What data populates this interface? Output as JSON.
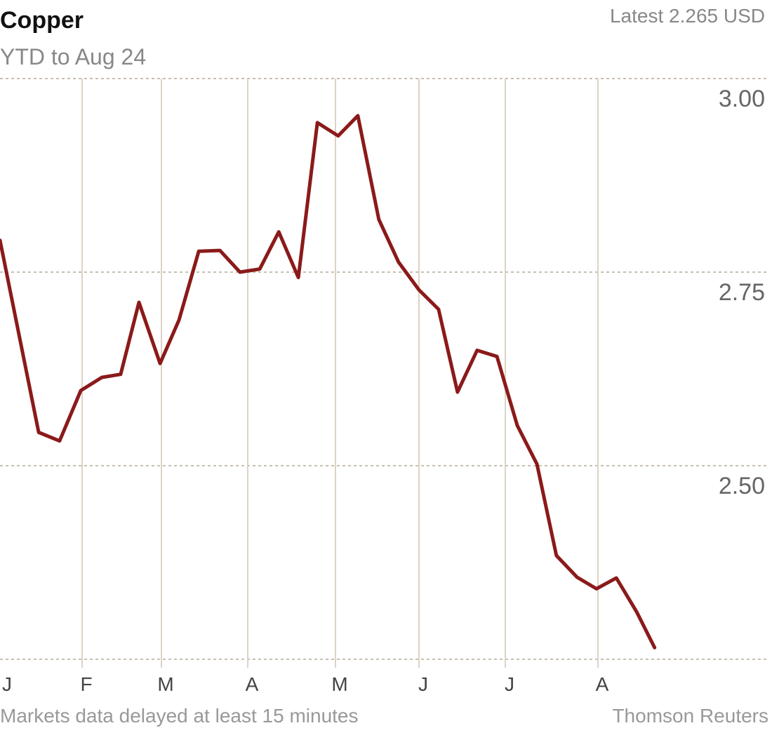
{
  "chart_data": {
    "type": "line",
    "title": "Copper",
    "subtitle": "YTD to Aug 24",
    "latest_label": "Latest 2.265 USD",
    "xlabel": "",
    "ylabel": "",
    "ylim": [
      2.25,
      3.0
    ],
    "yticks": [
      {
        "value": 3.0,
        "label": "3.00"
      },
      {
        "value": 2.75,
        "label": "2.75"
      },
      {
        "value": 2.5,
        "label": "2.50"
      },
      {
        "value": 2.25,
        "label": ""
      }
    ],
    "xticks": [
      {
        "day": 0,
        "label": "J"
      },
      {
        "day": 31,
        "label": "F"
      },
      {
        "day": 60,
        "label": "M"
      },
      {
        "day": 91,
        "label": "A"
      },
      {
        "day": 121,
        "label": "M"
      },
      {
        "day": 152,
        "label": "J"
      },
      {
        "day": 182,
        "label": "J"
      },
      {
        "day": 213,
        "label": "A"
      }
    ],
    "grid": true,
    "series": [
      {
        "name": "Copper",
        "color": "#8b1a1a",
        "x_unit": "day of year",
        "points": [
          [
            0,
            2.791
          ],
          [
            14.6,
            2.543
          ],
          [
            22.5,
            2.532
          ],
          [
            30.5,
            2.597
          ],
          [
            38.2,
            2.614
          ],
          [
            45.1,
            2.618
          ],
          [
            51.8,
            2.711
          ],
          [
            59.5,
            2.632
          ],
          [
            66.3,
            2.688
          ],
          [
            73.4,
            2.777
          ],
          [
            81,
            2.778
          ],
          [
            88.2,
            2.75
          ],
          [
            95.1,
            2.754
          ],
          [
            101.6,
            2.802
          ],
          [
            108.3,
            2.743
          ],
          [
            114.8,
            2.943
          ],
          [
            122,
            2.926
          ],
          [
            129.3,
            2.952
          ],
          [
            137.1,
            2.818
          ],
          [
            144.4,
            2.763
          ],
          [
            152,
            2.727
          ],
          [
            158.8,
            2.702
          ],
          [
            165.4,
            2.595
          ],
          [
            172.2,
            2.649
          ],
          [
            179.1,
            2.641
          ],
          [
            186,
            2.552
          ],
          [
            192.6,
            2.502
          ],
          [
            199.1,
            2.384
          ],
          [
            206,
            2.356
          ],
          [
            212.5,
            2.341
          ],
          [
            219.1,
            2.355
          ],
          [
            225.9,
            2.311
          ],
          [
            231.8,
            2.265
          ]
        ]
      }
    ],
    "footer_left": "Markets data delayed at least 15 minutes",
    "footer_right": "Thomson Reuters"
  }
}
